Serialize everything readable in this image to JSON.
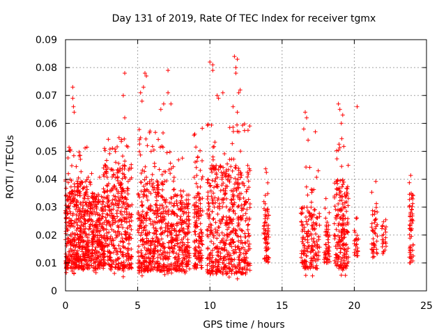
{
  "chart_data": {
    "type": "scatter",
    "title": "Day 131 of 2019, Rate Of TEC Index for receiver tgmx",
    "xlabel": "GPS time / hours",
    "ylabel": "ROTI / TECUs",
    "xlim": [
      0,
      25
    ],
    "ylim": [
      0,
      0.09
    ],
    "x_ticks": [
      0,
      5,
      10,
      15,
      20,
      25
    ],
    "x_tick_labels": [
      "0",
      "5",
      "10",
      "15",
      "20",
      "25"
    ],
    "y_ticks": [
      0,
      0.01,
      0.02,
      0.03,
      0.04,
      0.05,
      0.06,
      0.07,
      0.08,
      0.09
    ],
    "y_tick_labels": [
      "0",
      "0.01",
      "0.02",
      "0.03",
      "0.04",
      "0.05",
      "0.06",
      "0.07",
      "0.08",
      "0.09"
    ],
    "grid": true,
    "marker": "+",
    "marker_color": "#ff0000",
    "series": [
      {
        "name": "ROTI",
        "clusters": [
          {
            "x": [
              0.0,
              1.5
            ],
            "core": [
              0.008,
              0.04
            ],
            "spread": [
              0.006,
              0.052
            ],
            "density": 420
          },
          {
            "x": [
              1.5,
              2.6
            ],
            "core": [
              0.008,
              0.035
            ],
            "spread": [
              0.006,
              0.045
            ],
            "density": 260
          },
          {
            "x": [
              2.6,
              4.6
            ],
            "core": [
              0.008,
              0.045
            ],
            "spread": [
              0.005,
              0.055
            ],
            "density": 430
          },
          {
            "x": [
              5.0,
              6.8
            ],
            "core": [
              0.007,
              0.04
            ],
            "spread": [
              0.005,
              0.06
            ],
            "density": 380
          },
          {
            "x": [
              6.8,
              8.6
            ],
            "core": [
              0.007,
              0.035
            ],
            "spread": [
              0.005,
              0.05
            ],
            "density": 330
          },
          {
            "x": [
              8.9,
              9.5
            ],
            "core": [
              0.008,
              0.035
            ],
            "spread": [
              0.006,
              0.06
            ],
            "density": 140
          },
          {
            "x": [
              9.8,
              12.8
            ],
            "core": [
              0.006,
              0.045
            ],
            "spread": [
              0.004,
              0.06
            ],
            "density": 560
          },
          {
            "x": [
              13.7,
              14.1
            ],
            "core": [
              0.01,
              0.03
            ],
            "spread": [
              0.008,
              0.044
            ],
            "density": 70
          },
          {
            "x": [
              16.3,
              17.6
            ],
            "core": [
              0.008,
              0.03
            ],
            "spread": [
              0.005,
              0.045
            ],
            "density": 170
          },
          {
            "x": [
              17.9,
              18.3
            ],
            "core": [
              0.01,
              0.025
            ],
            "spread": [
              0.008,
              0.04
            ],
            "density": 55
          },
          {
            "x": [
              18.6,
              19.6
            ],
            "core": [
              0.008,
              0.04
            ],
            "spread": [
              0.005,
              0.055
            ],
            "density": 200
          },
          {
            "x": [
              20.0,
              20.3
            ],
            "core": [
              0.012,
              0.022
            ],
            "spread": [
              0.01,
              0.04
            ],
            "density": 25
          },
          {
            "x": [
              21.2,
              21.6
            ],
            "core": [
              0.012,
              0.03
            ],
            "spread": [
              0.01,
              0.042
            ],
            "density": 45
          },
          {
            "x": [
              21.9,
              22.2
            ],
            "core": [
              0.014,
              0.025
            ],
            "spread": [
              0.012,
              0.028
            ],
            "density": 25
          },
          {
            "x": [
              23.8,
              24.1
            ],
            "core": [
              0.01,
              0.035
            ],
            "spread": [
              0.008,
              0.044
            ],
            "density": 55
          }
        ],
        "outliers": [
          [
            0.5,
            0.073
          ],
          [
            0.5,
            0.069
          ],
          [
            0.55,
            0.066
          ],
          [
            0.6,
            0.064
          ],
          [
            4.1,
            0.078
          ],
          [
            4.0,
            0.07
          ],
          [
            4.1,
            0.062
          ],
          [
            5.5,
            0.078
          ],
          [
            5.6,
            0.077
          ],
          [
            5.4,
            0.073
          ],
          [
            5.2,
            0.071
          ],
          [
            5.3,
            0.068
          ],
          [
            7.1,
            0.079
          ],
          [
            7.1,
            0.071
          ],
          [
            7.3,
            0.067
          ],
          [
            6.8,
            0.067
          ],
          [
            6.6,
            0.065
          ],
          [
            10.0,
            0.082
          ],
          [
            10.2,
            0.081
          ],
          [
            10.2,
            0.079
          ],
          [
            10.5,
            0.07
          ],
          [
            10.6,
            0.069
          ],
          [
            10.9,
            0.071
          ],
          [
            11.7,
            0.084
          ],
          [
            11.9,
            0.083
          ],
          [
            11.8,
            0.08
          ],
          [
            11.8,
            0.078
          ],
          [
            12.1,
            0.072
          ],
          [
            12.0,
            0.071
          ],
          [
            11.6,
            0.066
          ],
          [
            11.9,
            0.064
          ],
          [
            16.6,
            0.064
          ],
          [
            16.7,
            0.062
          ],
          [
            16.5,
            0.058
          ],
          [
            16.8,
            0.054
          ],
          [
            18.9,
            0.067
          ],
          [
            19.0,
            0.065
          ],
          [
            19.2,
            0.063
          ],
          [
            19.1,
            0.06
          ],
          [
            20.2,
            0.066
          ],
          [
            17.3,
            0.057
          ]
        ]
      }
    ]
  }
}
